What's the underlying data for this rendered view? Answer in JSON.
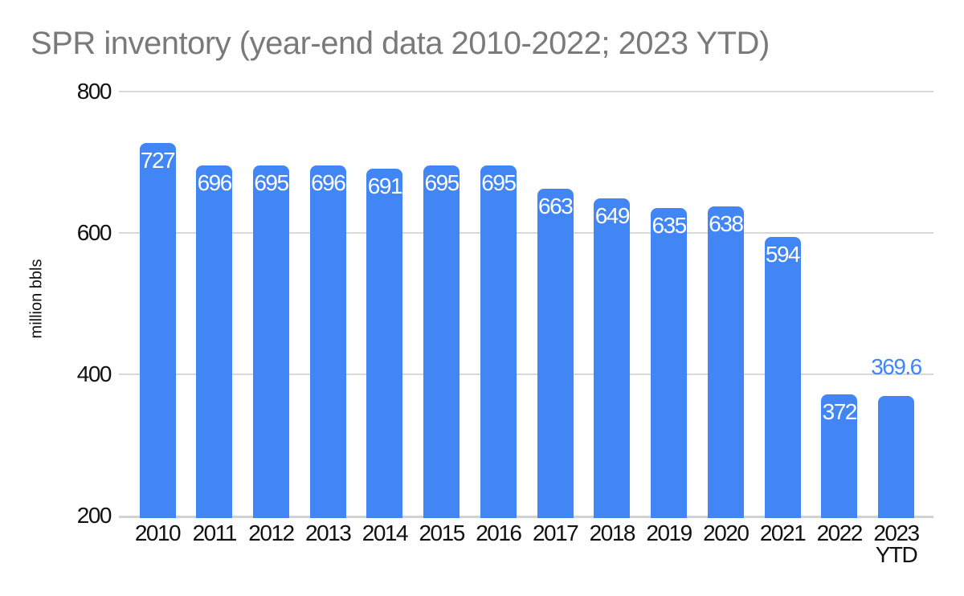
{
  "chart_data": {
    "type": "bar",
    "title": "SPR inventory (year-end data 2010-2022; 2023 YTD)",
    "xlabel": "",
    "ylabel": "million bbls",
    "categories": [
      "2010",
      "2011",
      "2012",
      "2013",
      "2014",
      "2015",
      "2016",
      "2017",
      "2018",
      "2019",
      "2020",
      "2021",
      "2022",
      "2023 YTD"
    ],
    "values": [
      727,
      696,
      695,
      696,
      691,
      695,
      695,
      663,
      649,
      635,
      638,
      594,
      372,
      369.6
    ],
    "value_labels": [
      "727",
      "696",
      "695",
      "696",
      "691",
      "695",
      "695",
      "663",
      "649",
      "635",
      "638",
      "594",
      "372",
      "369.6"
    ],
    "label_placements": [
      "inside",
      "inside",
      "inside",
      "inside",
      "inside",
      "inside",
      "inside",
      "inside",
      "inside",
      "inside",
      "inside",
      "inside",
      "inside",
      "above"
    ],
    "ylim": [
      200,
      800
    ],
    "yticks": [
      200,
      400,
      600,
      800
    ],
    "grid": true,
    "legend_position": "none",
    "colors": {
      "bar": "#4285f4",
      "label_inside": "#ffffff",
      "label_above": "#4285f4",
      "title": "#7a7a7a",
      "axis_text": "#111111",
      "gridline": "#d8d8d8",
      "axis_line": "#d2d2d2",
      "background": "#ffffff"
    }
  }
}
